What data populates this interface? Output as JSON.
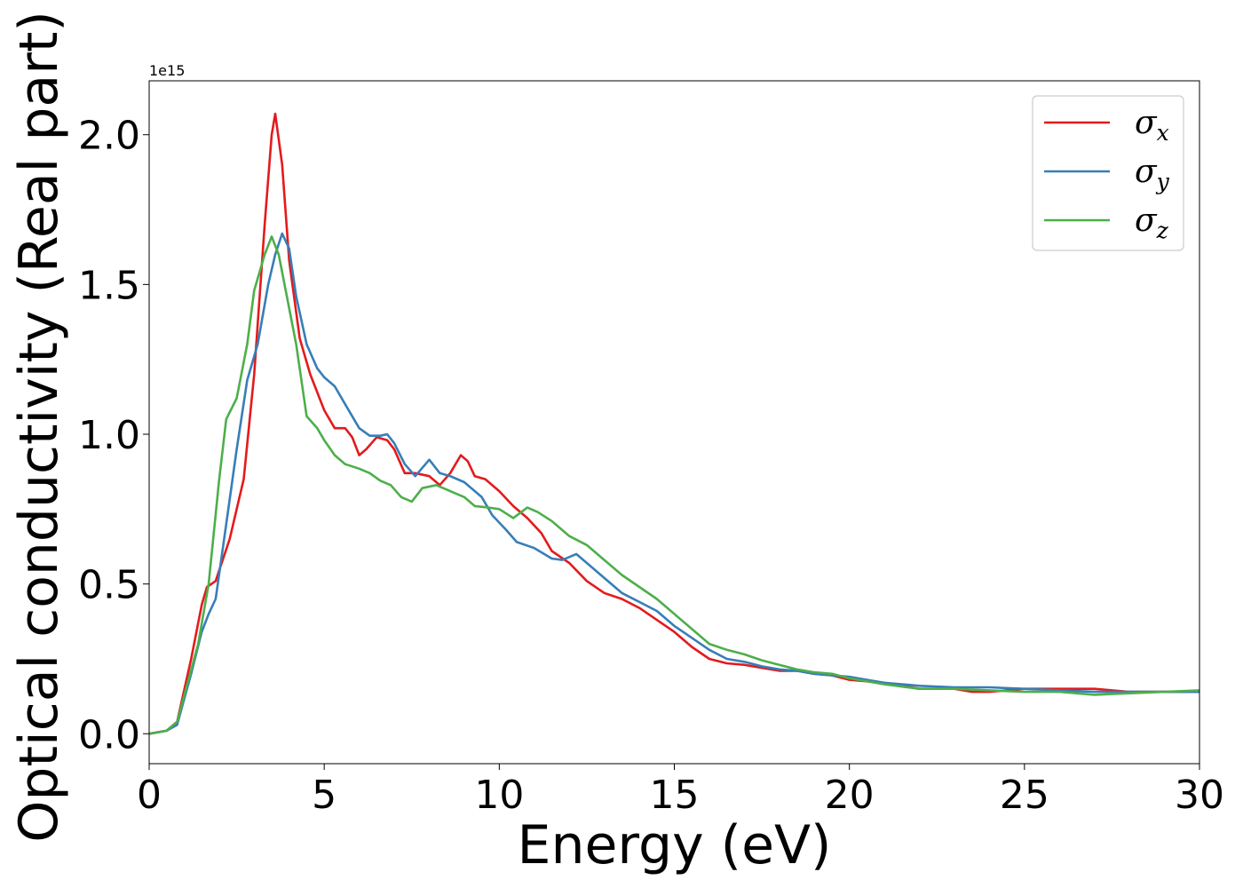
{
  "chart_data": {
    "type": "line",
    "xlabel": "Energy (eV)",
    "ylabel": "Optical conductivity (Real part)",
    "y_offset_label": "1e15",
    "xlim": [
      0,
      30
    ],
    "ylim": [
      -0.1,
      2.18
    ],
    "x_ticks": [
      0,
      5,
      10,
      15,
      20,
      25,
      30
    ],
    "x_tick_labels": [
      "0",
      "5",
      "10",
      "15",
      "20",
      "25",
      "30"
    ],
    "y_ticks": [
      0.0,
      0.5,
      1.0,
      1.5,
      2.0
    ],
    "y_tick_labels": [
      "0.0",
      "0.5",
      "1.0",
      "1.5",
      "2.0"
    ],
    "grid": false,
    "legend_position": "top-right",
    "series": [
      {
        "name": "σx",
        "symbol": "σ",
        "subscript": "x",
        "color": "#e41a1c",
        "points": [
          [
            0,
            0
          ],
          [
            0.5,
            0.01
          ],
          [
            0.8,
            0.04
          ],
          [
            1.2,
            0.25
          ],
          [
            1.5,
            0.43
          ],
          [
            1.65,
            0.49
          ],
          [
            1.9,
            0.51
          ],
          [
            2.3,
            0.65
          ],
          [
            2.7,
            0.85
          ],
          [
            3.0,
            1.2
          ],
          [
            3.3,
            1.7
          ],
          [
            3.5,
            2.0
          ],
          [
            3.6,
            2.07
          ],
          [
            3.8,
            1.9
          ],
          [
            4.0,
            1.58
          ],
          [
            4.3,
            1.32
          ],
          [
            4.6,
            1.2
          ],
          [
            5.0,
            1.08
          ],
          [
            5.3,
            1.02
          ],
          [
            5.6,
            1.02
          ],
          [
            5.8,
            0.99
          ],
          [
            6.0,
            0.93
          ],
          [
            6.2,
            0.95
          ],
          [
            6.5,
            0.99
          ],
          [
            6.8,
            0.98
          ],
          [
            7.0,
            0.95
          ],
          [
            7.3,
            0.87
          ],
          [
            7.6,
            0.87
          ],
          [
            8.0,
            0.86
          ],
          [
            8.3,
            0.83
          ],
          [
            8.6,
            0.87
          ],
          [
            8.9,
            0.93
          ],
          [
            9.1,
            0.91
          ],
          [
            9.3,
            0.86
          ],
          [
            9.6,
            0.85
          ],
          [
            10.0,
            0.81
          ],
          [
            10.4,
            0.76
          ],
          [
            10.8,
            0.72
          ],
          [
            11.2,
            0.67
          ],
          [
            11.5,
            0.61
          ],
          [
            12.0,
            0.57
          ],
          [
            12.5,
            0.51
          ],
          [
            13.0,
            0.47
          ],
          [
            13.5,
            0.45
          ],
          [
            14.0,
            0.42
          ],
          [
            14.5,
            0.38
          ],
          [
            15.0,
            0.34
          ],
          [
            15.5,
            0.29
          ],
          [
            16.0,
            0.25
          ],
          [
            16.5,
            0.235
          ],
          [
            17.0,
            0.23
          ],
          [
            17.5,
            0.22
          ],
          [
            18.0,
            0.21
          ],
          [
            18.5,
            0.21
          ],
          [
            19.0,
            0.2
          ],
          [
            19.5,
            0.195
          ],
          [
            20.0,
            0.18
          ],
          [
            21.0,
            0.17
          ],
          [
            22.0,
            0.15
          ],
          [
            23.0,
            0.15
          ],
          [
            23.5,
            0.14
          ],
          [
            24.0,
            0.14
          ],
          [
            25.0,
            0.15
          ],
          [
            26.0,
            0.15
          ],
          [
            27.0,
            0.15
          ],
          [
            28.0,
            0.14
          ],
          [
            29.0,
            0.14
          ],
          [
            30.0,
            0.14
          ]
        ]
      },
      {
        "name": "σy",
        "symbol": "σ",
        "subscript": "y",
        "color": "#377eb8",
        "points": [
          [
            0,
            0
          ],
          [
            0.5,
            0.01
          ],
          [
            0.8,
            0.03
          ],
          [
            1.2,
            0.2
          ],
          [
            1.5,
            0.34
          ],
          [
            1.7,
            0.4
          ],
          [
            1.9,
            0.45
          ],
          [
            2.2,
            0.7
          ],
          [
            2.5,
            0.95
          ],
          [
            2.8,
            1.18
          ],
          [
            3.1,
            1.3
          ],
          [
            3.4,
            1.5
          ],
          [
            3.6,
            1.6
          ],
          [
            3.8,
            1.67
          ],
          [
            4.0,
            1.62
          ],
          [
            4.2,
            1.46
          ],
          [
            4.5,
            1.3
          ],
          [
            4.8,
            1.22
          ],
          [
            5.0,
            1.19
          ],
          [
            5.3,
            1.16
          ],
          [
            5.6,
            1.1
          ],
          [
            6.0,
            1.02
          ],
          [
            6.3,
            0.995
          ],
          [
            6.6,
            0.995
          ],
          [
            6.8,
            1.0
          ],
          [
            7.0,
            0.97
          ],
          [
            7.3,
            0.9
          ],
          [
            7.6,
            0.86
          ],
          [
            8.0,
            0.915
          ],
          [
            8.3,
            0.87
          ],
          [
            8.6,
            0.86
          ],
          [
            9.0,
            0.84
          ],
          [
            9.5,
            0.79
          ],
          [
            9.8,
            0.73
          ],
          [
            10.2,
            0.68
          ],
          [
            10.5,
            0.64
          ],
          [
            11.0,
            0.62
          ],
          [
            11.5,
            0.585
          ],
          [
            11.8,
            0.58
          ],
          [
            12.2,
            0.6
          ],
          [
            12.6,
            0.56
          ],
          [
            13.0,
            0.52
          ],
          [
            13.5,
            0.47
          ],
          [
            14.0,
            0.44
          ],
          [
            14.5,
            0.41
          ],
          [
            15.0,
            0.36
          ],
          [
            15.5,
            0.32
          ],
          [
            16.0,
            0.28
          ],
          [
            16.5,
            0.25
          ],
          [
            17.0,
            0.24
          ],
          [
            17.5,
            0.225
          ],
          [
            18.0,
            0.215
          ],
          [
            18.5,
            0.21
          ],
          [
            19.0,
            0.2
          ],
          [
            20.0,
            0.19
          ],
          [
            21.0,
            0.17
          ],
          [
            22.0,
            0.16
          ],
          [
            23.0,
            0.155
          ],
          [
            24.0,
            0.155
          ],
          [
            25.0,
            0.15
          ],
          [
            26.0,
            0.145
          ],
          [
            27.0,
            0.14
          ],
          [
            28.0,
            0.14
          ],
          [
            29.0,
            0.14
          ],
          [
            30.0,
            0.14
          ]
        ]
      },
      {
        "name": "σz",
        "symbol": "σ",
        "subscript": "z",
        "color": "#4daf4a",
        "points": [
          [
            0,
            0
          ],
          [
            0.5,
            0.01
          ],
          [
            0.8,
            0.04
          ],
          [
            1.1,
            0.17
          ],
          [
            1.4,
            0.3
          ],
          [
            1.7,
            0.5
          ],
          [
            2.0,
            0.85
          ],
          [
            2.2,
            1.05
          ],
          [
            2.5,
            1.12
          ],
          [
            2.8,
            1.3
          ],
          [
            3.0,
            1.48
          ],
          [
            3.3,
            1.6
          ],
          [
            3.5,
            1.66
          ],
          [
            3.7,
            1.6
          ],
          [
            3.9,
            1.48
          ],
          [
            4.2,
            1.3
          ],
          [
            4.5,
            1.06
          ],
          [
            4.8,
            1.02
          ],
          [
            5.0,
            0.98
          ],
          [
            5.3,
            0.93
          ],
          [
            5.6,
            0.9
          ],
          [
            6.0,
            0.885
          ],
          [
            6.3,
            0.87
          ],
          [
            6.6,
            0.845
          ],
          [
            6.9,
            0.83
          ],
          [
            7.2,
            0.79
          ],
          [
            7.5,
            0.775
          ],
          [
            7.8,
            0.82
          ],
          [
            8.2,
            0.83
          ],
          [
            8.6,
            0.81
          ],
          [
            9.0,
            0.79
          ],
          [
            9.3,
            0.76
          ],
          [
            9.7,
            0.755
          ],
          [
            10.0,
            0.75
          ],
          [
            10.4,
            0.72
          ],
          [
            10.8,
            0.755
          ],
          [
            11.1,
            0.74
          ],
          [
            11.5,
            0.71
          ],
          [
            12.0,
            0.66
          ],
          [
            12.5,
            0.63
          ],
          [
            13.0,
            0.58
          ],
          [
            13.5,
            0.53
          ],
          [
            14.0,
            0.49
          ],
          [
            14.5,
            0.45
          ],
          [
            15.0,
            0.4
          ],
          [
            15.5,
            0.35
          ],
          [
            16.0,
            0.3
          ],
          [
            16.5,
            0.28
          ],
          [
            17.0,
            0.265
          ],
          [
            17.5,
            0.245
          ],
          [
            18.0,
            0.23
          ],
          [
            18.5,
            0.215
          ],
          [
            19.0,
            0.205
          ],
          [
            19.5,
            0.2
          ],
          [
            20.0,
            0.185
          ],
          [
            21.0,
            0.165
          ],
          [
            22.0,
            0.15
          ],
          [
            23.0,
            0.15
          ],
          [
            24.0,
            0.145
          ],
          [
            25.0,
            0.14
          ],
          [
            26.0,
            0.14
          ],
          [
            27.0,
            0.13
          ],
          [
            28.0,
            0.135
          ],
          [
            29.0,
            0.14
          ],
          [
            30.0,
            0.145
          ]
        ]
      }
    ]
  }
}
